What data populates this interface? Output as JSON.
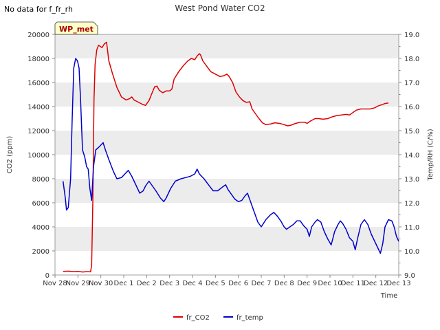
{
  "no_data_note": "No data for f_fr_rh",
  "badge": {
    "label": "WP_met",
    "bg": "#ffffcc",
    "fg": "#aa0000"
  },
  "colors": {
    "co2": "#dd0000",
    "temp": "#0000cc",
    "band": "#ececec",
    "axis": "#888888"
  },
  "chart_data": {
    "type": "line",
    "title": "West Pond Water CO2",
    "xlabel": "Time",
    "ylabel": "CO2 (ppm)",
    "y2label": "Temp/RH (C/%)",
    "xlim": [
      0,
      15
    ],
    "ylim": [
      0,
      20000
    ],
    "y2lim": [
      9.0,
      19.0
    ],
    "x_ticks": [
      {
        "x": 0,
        "label": "Nov 28"
      },
      {
        "x": 1,
        "label": "Nov 29"
      },
      {
        "x": 2,
        "label": "Nov 30"
      },
      {
        "x": 3,
        "label": "Dec 1"
      },
      {
        "x": 4,
        "label": "Dec 2"
      },
      {
        "x": 5,
        "label": "Dec 3"
      },
      {
        "x": 6,
        "label": "Dec 4"
      },
      {
        "x": 7,
        "label": "Dec 5"
      },
      {
        "x": 8,
        "label": "Dec 6"
      },
      {
        "x": 9,
        "label": "Dec 7"
      },
      {
        "x": 10,
        "label": "Dec 8"
      },
      {
        "x": 11,
        "label": "Dec 9"
      },
      {
        "x": 12,
        "label": "Dec 10"
      },
      {
        "x": 13,
        "label": "Dec 11"
      },
      {
        "x": 14,
        "label": "Dec 12"
      },
      {
        "x": 15,
        "label": "Dec 13"
      }
    ],
    "y_ticks": [
      "0",
      "2000",
      "4000",
      "6000",
      "8000",
      "10000",
      "12000",
      "14000",
      "16000",
      "18000",
      "20000"
    ],
    "y_tick_values": [
      0,
      2000,
      4000,
      6000,
      8000,
      10000,
      12000,
      14000,
      16000,
      18000,
      20000
    ],
    "y2_ticks": [
      "9.0",
      "10.0",
      "11.0",
      "12.0",
      "13.0",
      "14.0",
      "15.0",
      "16.0",
      "17.0",
      "18.0",
      "19.0"
    ],
    "y2_tick_values": [
      9,
      10,
      11,
      12,
      13,
      14,
      15,
      16,
      17,
      18,
      19
    ],
    "grid": "horizontal bands",
    "legend_position": "bottom-center",
    "series": [
      {
        "name": "fr_CO2",
        "axis": "left",
        "points": [
          [
            0.35,
            300
          ],
          [
            0.6,
            320
          ],
          [
            0.8,
            280
          ],
          [
            1.0,
            300
          ],
          [
            1.2,
            250
          ],
          [
            1.4,
            280
          ],
          [
            1.55,
            260
          ],
          [
            1.6,
            800
          ],
          [
            1.65,
            6000
          ],
          [
            1.7,
            14500
          ],
          [
            1.75,
            17500
          ],
          [
            1.82,
            18700
          ],
          [
            1.9,
            19100
          ],
          [
            2.05,
            18900
          ],
          [
            2.15,
            19200
          ],
          [
            2.25,
            19350
          ],
          [
            2.35,
            17800
          ],
          [
            2.5,
            16800
          ],
          [
            2.7,
            15600
          ],
          [
            2.9,
            14800
          ],
          [
            3.1,
            14550
          ],
          [
            3.25,
            14650
          ],
          [
            3.35,
            14800
          ],
          [
            3.45,
            14550
          ],
          [
            3.6,
            14400
          ],
          [
            3.8,
            14200
          ],
          [
            3.95,
            14100
          ],
          [
            4.1,
            14500
          ],
          [
            4.25,
            15200
          ],
          [
            4.35,
            15650
          ],
          [
            4.45,
            15700
          ],
          [
            4.55,
            15350
          ],
          [
            4.7,
            15150
          ],
          [
            4.85,
            15300
          ],
          [
            5.0,
            15300
          ],
          [
            5.1,
            15450
          ],
          [
            5.2,
            16300
          ],
          [
            5.4,
            16900
          ],
          [
            5.6,
            17400
          ],
          [
            5.8,
            17800
          ],
          [
            5.95,
            18000
          ],
          [
            6.1,
            17900
          ],
          [
            6.2,
            18200
          ],
          [
            6.3,
            18400
          ],
          [
            6.35,
            18300
          ],
          [
            6.45,
            17800
          ],
          [
            6.6,
            17400
          ],
          [
            6.8,
            16900
          ],
          [
            7.0,
            16700
          ],
          [
            7.2,
            16500
          ],
          [
            7.35,
            16550
          ],
          [
            7.5,
            16700
          ],
          [
            7.6,
            16500
          ],
          [
            7.75,
            16000
          ],
          [
            7.9,
            15200
          ],
          [
            8.05,
            14800
          ],
          [
            8.2,
            14500
          ],
          [
            8.35,
            14350
          ],
          [
            8.5,
            14400
          ],
          [
            8.6,
            13800
          ],
          [
            8.75,
            13400
          ],
          [
            8.9,
            13000
          ],
          [
            9.05,
            12650
          ],
          [
            9.2,
            12500
          ],
          [
            9.4,
            12550
          ],
          [
            9.6,
            12650
          ],
          [
            9.8,
            12600
          ],
          [
            10.0,
            12500
          ],
          [
            10.15,
            12400
          ],
          [
            10.3,
            12450
          ],
          [
            10.5,
            12600
          ],
          [
            10.7,
            12700
          ],
          [
            10.9,
            12700
          ],
          [
            11.0,
            12600
          ],
          [
            11.15,
            12800
          ],
          [
            11.35,
            13000
          ],
          [
            11.5,
            13000
          ],
          [
            11.7,
            12950
          ],
          [
            11.9,
            13000
          ],
          [
            12.1,
            13150
          ],
          [
            12.3,
            13250
          ],
          [
            12.5,
            13300
          ],
          [
            12.7,
            13350
          ],
          [
            12.85,
            13300
          ],
          [
            13.0,
            13500
          ],
          [
            13.15,
            13700
          ],
          [
            13.35,
            13800
          ],
          [
            13.55,
            13800
          ],
          [
            13.75,
            13800
          ],
          [
            13.95,
            13900
          ],
          [
            14.1,
            14050
          ],
          [
            14.25,
            14150
          ],
          [
            14.4,
            14250
          ],
          [
            14.55,
            14300
          ]
        ]
      },
      {
        "name": "fr_temp",
        "axis": "right",
        "points": [
          [
            0.35,
            12.9
          ],
          [
            0.45,
            12.2
          ],
          [
            0.5,
            11.7
          ],
          [
            0.58,
            11.8
          ],
          [
            0.68,
            13.0
          ],
          [
            0.75,
            15.5
          ],
          [
            0.82,
            17.6
          ],
          [
            0.9,
            18.0
          ],
          [
            0.98,
            17.9
          ],
          [
            1.05,
            17.6
          ],
          [
            1.12,
            16.2
          ],
          [
            1.2,
            14.2
          ],
          [
            1.3,
            13.9
          ],
          [
            1.38,
            13.5
          ],
          [
            1.45,
            13.4
          ],
          [
            1.52,
            12.6
          ],
          [
            1.6,
            12.1
          ],
          [
            1.68,
            13.5
          ],
          [
            1.78,
            14.2
          ],
          [
            1.9,
            14.3
          ],
          [
            2.0,
            14.4
          ],
          [
            2.1,
            14.5
          ],
          [
            2.2,
            14.2
          ],
          [
            2.35,
            13.8
          ],
          [
            2.55,
            13.3
          ],
          [
            2.7,
            13.0
          ],
          [
            2.9,
            13.05
          ],
          [
            3.05,
            13.2
          ],
          [
            3.2,
            13.35
          ],
          [
            3.35,
            13.1
          ],
          [
            3.5,
            12.8
          ],
          [
            3.7,
            12.4
          ],
          [
            3.85,
            12.5
          ],
          [
            3.95,
            12.7
          ],
          [
            4.1,
            12.9
          ],
          [
            4.25,
            12.7
          ],
          [
            4.4,
            12.5
          ],
          [
            4.6,
            12.2
          ],
          [
            4.75,
            12.05
          ],
          [
            4.85,
            12.2
          ],
          [
            5.05,
            12.6
          ],
          [
            5.25,
            12.9
          ],
          [
            5.5,
            13.0
          ],
          [
            5.7,
            13.05
          ],
          [
            5.9,
            13.1
          ],
          [
            6.1,
            13.2
          ],
          [
            6.2,
            13.4
          ],
          [
            6.3,
            13.2
          ],
          [
            6.5,
            13.0
          ],
          [
            6.7,
            12.75
          ],
          [
            6.9,
            12.5
          ],
          [
            7.1,
            12.5
          ],
          [
            7.3,
            12.65
          ],
          [
            7.45,
            12.75
          ],
          [
            7.55,
            12.55
          ],
          [
            7.7,
            12.35
          ],
          [
            7.85,
            12.15
          ],
          [
            8.0,
            12.05
          ],
          [
            8.15,
            12.1
          ],
          [
            8.3,
            12.3
          ],
          [
            8.4,
            12.4
          ],
          [
            8.55,
            12.0
          ],
          [
            8.7,
            11.6
          ],
          [
            8.85,
            11.2
          ],
          [
            9.0,
            11.0
          ],
          [
            9.2,
            11.3
          ],
          [
            9.4,
            11.5
          ],
          [
            9.55,
            11.6
          ],
          [
            9.7,
            11.45
          ],
          [
            9.85,
            11.25
          ],
          [
            10.0,
            11.0
          ],
          [
            10.1,
            10.9
          ],
          [
            10.25,
            11.0
          ],
          [
            10.4,
            11.1
          ],
          [
            10.55,
            11.25
          ],
          [
            10.7,
            11.25
          ],
          [
            10.85,
            11.05
          ],
          [
            11.0,
            10.9
          ],
          [
            11.1,
            10.6
          ],
          [
            11.2,
            11.0
          ],
          [
            11.35,
            11.2
          ],
          [
            11.45,
            11.3
          ],
          [
            11.6,
            11.2
          ],
          [
            11.75,
            10.8
          ],
          [
            11.9,
            10.5
          ],
          [
            12.05,
            10.25
          ],
          [
            12.2,
            10.8
          ],
          [
            12.35,
            11.1
          ],
          [
            12.45,
            11.25
          ],
          [
            12.55,
            11.15
          ],
          [
            12.7,
            10.9
          ],
          [
            12.85,
            10.55
          ],
          [
            13.0,
            10.4
          ],
          [
            13.1,
            10.05
          ],
          [
            13.2,
            10.5
          ],
          [
            13.35,
            11.1
          ],
          [
            13.5,
            11.3
          ],
          [
            13.65,
            11.1
          ],
          [
            13.8,
            10.7
          ],
          [
            13.95,
            10.4
          ],
          [
            14.1,
            10.1
          ],
          [
            14.2,
            9.9
          ],
          [
            14.3,
            10.3
          ],
          [
            14.4,
            11.0
          ],
          [
            14.55,
            11.3
          ],
          [
            14.7,
            11.25
          ],
          [
            14.8,
            11.0
          ],
          [
            14.9,
            10.6
          ],
          [
            15.0,
            10.4
          ]
        ]
      }
    ]
  }
}
